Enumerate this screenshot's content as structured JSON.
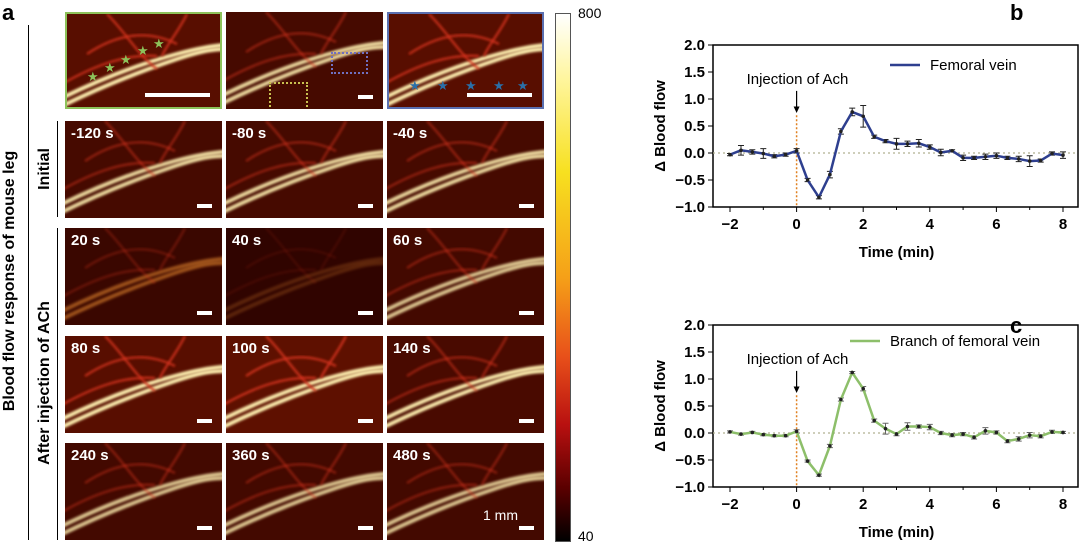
{
  "panel_a": {
    "letter": "a",
    "side_label": "Blood flow response of mouse leg",
    "group_labels": [
      "Initial",
      "After injection of ACh"
    ],
    "time_labels": [
      [
        "-120 s",
        "-80 s",
        "-40 s"
      ],
      [
        "20 s",
        "40 s",
        "60 s"
      ],
      [
        "80 s",
        "100 s",
        "140 s"
      ],
      [
        "240 s",
        "360 s",
        "480 s"
      ]
    ],
    "scale_bar_label": "1 mm",
    "colorbar": {
      "max": "800",
      "min": "40",
      "colormap": "hot"
    },
    "inset_colors": {
      "left_box": "#8dc25a",
      "right_box": "#5a6fb0"
    }
  },
  "chart_data": [
    {
      "letter": "b",
      "type": "line",
      "ylabel": "Δ Blood flow",
      "xlabel": "Time (min)",
      "xlim": [
        -2,
        8
      ],
      "ylim": [
        -1.0,
        2.0
      ],
      "xticks": [
        "-2",
        "0",
        "2",
        "4",
        "6",
        "8"
      ],
      "yticks": [
        "-1.0",
        "-0.5",
        "0.0",
        "0.5",
        "1.0",
        "1.5",
        "2.0"
      ],
      "annotation": "Injection of Ach",
      "legend_position": "top-right",
      "color": "#2e3f8f",
      "series": [
        {
          "name": "Femoral vein",
          "x": [
            -2,
            -1.67,
            -1.33,
            -1,
            -0.67,
            -0.33,
            0,
            0.33,
            0.67,
            1,
            1.33,
            1.67,
            2,
            2.33,
            2.67,
            3,
            3.33,
            3.67,
            4,
            4.33,
            4.67,
            5,
            5.33,
            5.67,
            6,
            6.33,
            6.67,
            7,
            7.33,
            7.67,
            8
          ],
          "values": [
            -0.03,
            0.05,
            0.02,
            -0.01,
            -0.06,
            -0.03,
            0.04,
            -0.5,
            -0.82,
            -0.4,
            0.4,
            0.76,
            0.68,
            0.3,
            0.22,
            0.17,
            0.17,
            0.18,
            0.11,
            0.01,
            0.04,
            -0.09,
            -0.09,
            -0.07,
            -0.05,
            -0.09,
            -0.11,
            -0.15,
            -0.14,
            -0.01,
            -0.04
          ],
          "errors": [
            0.02,
            0.09,
            0.04,
            0.09,
            0.03,
            0.03,
            0.04,
            0.03,
            0.03,
            0.06,
            0.05,
            0.07,
            0.2,
            0.03,
            0.03,
            0.1,
            0.05,
            0.07,
            0.04,
            0.06,
            0.02,
            0.05,
            0.03,
            0.05,
            0.05,
            0.03,
            0.05,
            0.1,
            0.03,
            0.03,
            0.06
          ]
        }
      ]
    },
    {
      "letter": "c",
      "type": "line",
      "ylabel": "Δ Blood flow",
      "xlabel": "Time (min)",
      "xlim": [
        -2,
        8
      ],
      "ylim": [
        -1.0,
        2.0
      ],
      "xticks": [
        "-2",
        "0",
        "2",
        "4",
        "6",
        "8"
      ],
      "yticks": [
        "-1.0",
        "-0.5",
        "0.0",
        "0.5",
        "1.0",
        "1.5",
        "2.0"
      ],
      "annotation": "Injection of Ach",
      "legend_position": "top-right",
      "color": "#8dbf6a",
      "series": [
        {
          "name": "Branch of femoral vein",
          "x": [
            -2,
            -1.67,
            -1.33,
            -1,
            -0.67,
            -0.33,
            0,
            0.33,
            0.67,
            1,
            1.33,
            1.67,
            2,
            2.33,
            2.67,
            3,
            3.33,
            3.67,
            4,
            4.33,
            4.67,
            5,
            5.33,
            5.67,
            6,
            6.33,
            6.67,
            7,
            7.33,
            7.67,
            8
          ],
          "values": [
            0.02,
            -0.02,
            0.01,
            -0.03,
            -0.05,
            -0.05,
            0.03,
            -0.52,
            -0.78,
            -0.24,
            0.62,
            1.12,
            0.82,
            0.23,
            0.08,
            -0.02,
            0.12,
            0.12,
            0.11,
            0.0,
            -0.04,
            -0.02,
            -0.08,
            0.04,
            0.01,
            -0.15,
            -0.11,
            -0.04,
            -0.06,
            0.02,
            0.01
          ],
          "errors": [
            0.02,
            0.02,
            0.02,
            0.02,
            0.02,
            0.02,
            0.03,
            0.02,
            0.02,
            0.03,
            0.03,
            0.02,
            0.04,
            0.03,
            0.1,
            0.03,
            0.07,
            0.03,
            0.05,
            0.03,
            0.03,
            0.03,
            0.03,
            0.06,
            0.03,
            0.03,
            0.04,
            0.05,
            0.03,
            0.03,
            0.02
          ]
        }
      ]
    }
  ]
}
